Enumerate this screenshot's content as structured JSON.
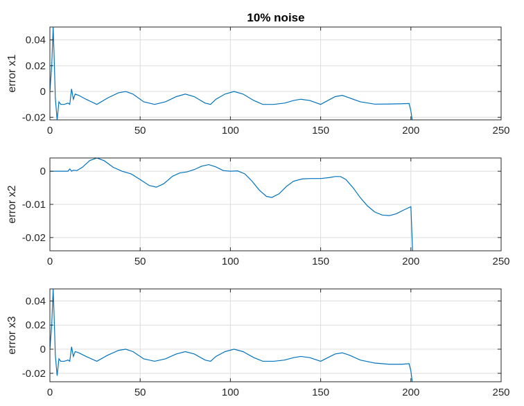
{
  "figure": {
    "title": "10% noise"
  },
  "colors": {
    "series": "#0072bd",
    "grid": "#dcdcdc",
    "axis": "#262626"
  },
  "chart_data": [
    {
      "type": "line",
      "title": "10% noise",
      "xlabel": "",
      "ylabel": "error x1",
      "xlim": [
        0,
        250
      ],
      "ylim": [
        -0.022,
        0.05
      ],
      "xticks": [
        0,
        50,
        100,
        150,
        200,
        250
      ],
      "yticks": [
        -0.02,
        0,
        0.02,
        0.04
      ],
      "xtick_labels": [
        "0",
        "50",
        "100",
        "150",
        "200",
        "250"
      ],
      "ytick_labels": [
        "-0.02",
        "0",
        "0.02",
        "0.04"
      ],
      "grid": true,
      "series": [
        {
          "x": [
            0,
            1,
            1.8,
            2.5,
            3,
            4,
            5,
            6,
            8,
            10,
            11,
            12,
            13,
            14,
            16,
            20,
            26,
            32,
            38,
            42,
            46,
            52,
            58,
            64,
            70,
            75,
            80,
            86,
            89,
            92,
            97,
            102,
            107,
            113,
            118,
            124,
            130,
            135,
            139,
            144,
            150,
            154,
            158,
            162,
            166,
            172,
            180,
            188,
            195,
            199,
            200,
            201
          ],
          "y": [
            0,
            0.02,
            0.05,
            0.02,
            -0.005,
            -0.022,
            -0.008,
            -0.01,
            -0.01,
            -0.009,
            -0.01,
            0.002,
            -0.006,
            -0.002,
            -0.003,
            -0.006,
            -0.01,
            -0.005,
            -0.001,
            0,
            -0.002,
            -0.008,
            -0.01,
            -0.008,
            -0.004,
            -0.002,
            -0.004,
            -0.009,
            -0.01,
            -0.006,
            -0.002,
            0,
            -0.002,
            -0.007,
            -0.01,
            -0.01,
            -0.009,
            -0.007,
            -0.006,
            -0.007,
            -0.01,
            -0.007,
            -0.004,
            -0.003,
            -0.005,
            -0.008,
            -0.0098,
            -0.0097,
            -0.0095,
            -0.0093,
            -0.015,
            -0.025
          ]
        }
      ]
    },
    {
      "type": "line",
      "title": "",
      "xlabel": "",
      "ylabel": "error x2",
      "xlim": [
        0,
        250
      ],
      "ylim": [
        -0.024,
        0.004
      ],
      "xticks": [
        0,
        50,
        100,
        150,
        200,
        250
      ],
      "yticks": [
        -0.02,
        -0.01,
        0
      ],
      "xtick_labels": [
        "0",
        "50",
        "100",
        "150",
        "200",
        "250"
      ],
      "ytick_labels": [
        "-0.02",
        "-0.01",
        "0"
      ],
      "grid": true,
      "series": [
        {
          "x": [
            0,
            10,
            11,
            12,
            13,
            15,
            18,
            22,
            26,
            30,
            35,
            40,
            45,
            50,
            55,
            59,
            63,
            68,
            72,
            76,
            80,
            84,
            88,
            92,
            96,
            100,
            104,
            108,
            112,
            116,
            120,
            123,
            127,
            131,
            135,
            140,
            145,
            150,
            155,
            158,
            161,
            164,
            168,
            172,
            176,
            180,
            184,
            188,
            192,
            196,
            200,
            201
          ],
          "y": [
            0,
            0,
            0.0007,
            0,
            0.0003,
            0.0002,
            0.0012,
            0.0032,
            0.004,
            0.0032,
            0.0012,
            0,
            -0.0008,
            -0.0025,
            -0.0043,
            -0.0048,
            -0.0038,
            -0.0015,
            -0.0005,
            -0.0002,
            0.0005,
            0.0015,
            0.002,
            0.0013,
            0.0002,
            0,
            0.0001,
            -0.0008,
            -0.003,
            -0.0057,
            -0.0076,
            -0.0079,
            -0.0068,
            -0.0046,
            -0.003,
            -0.0023,
            -0.0022,
            -0.0022,
            -0.0019,
            -0.0016,
            -0.0016,
            -0.0025,
            -0.005,
            -0.008,
            -0.0105,
            -0.0123,
            -0.0132,
            -0.0134,
            -0.0128,
            -0.0117,
            -0.0107,
            -0.025
          ]
        }
      ]
    },
    {
      "type": "line",
      "title": "",
      "xlabel": "",
      "ylabel": "error x3",
      "xlim": [
        0,
        250
      ],
      "ylim": [
        -0.027,
        0.05
      ],
      "xticks": [
        0,
        50,
        100,
        150,
        200,
        250
      ],
      "yticks": [
        -0.02,
        0,
        0.02,
        0.04
      ],
      "xtick_labels": [
        "0",
        "50",
        "100",
        "150",
        "200",
        "250"
      ],
      "ytick_labels": [
        "-0.02",
        "0",
        "0.02",
        "0.04"
      ],
      "grid": true,
      "series": [
        {
          "x": [
            0,
            1,
            1.8,
            2.5,
            3,
            4,
            5,
            6,
            8,
            10,
            11,
            12,
            13,
            14,
            16,
            20,
            26,
            32,
            38,
            42,
            46,
            52,
            58,
            64,
            70,
            75,
            80,
            86,
            89,
            92,
            97,
            102,
            107,
            113,
            118,
            124,
            130,
            135,
            139,
            144,
            150,
            154,
            158,
            162,
            166,
            172,
            180,
            188,
            195,
            199,
            200,
            201
          ],
          "y": [
            0,
            0.02,
            0.05,
            0.02,
            -0.005,
            -0.022,
            -0.008,
            -0.01,
            -0.01,
            -0.009,
            -0.01,
            0.002,
            -0.006,
            -0.002,
            -0.003,
            -0.006,
            -0.01,
            -0.005,
            -0.001,
            0,
            -0.002,
            -0.008,
            -0.01,
            -0.008,
            -0.004,
            -0.002,
            -0.004,
            -0.009,
            -0.01,
            -0.006,
            -0.002,
            0,
            -0.002,
            -0.007,
            -0.01,
            -0.01,
            -0.009,
            -0.007,
            -0.006,
            -0.007,
            -0.01,
            -0.007,
            -0.004,
            -0.003,
            -0.005,
            -0.009,
            -0.0115,
            -0.0125,
            -0.0125,
            -0.012,
            -0.018,
            -0.03
          ]
        }
      ]
    }
  ]
}
